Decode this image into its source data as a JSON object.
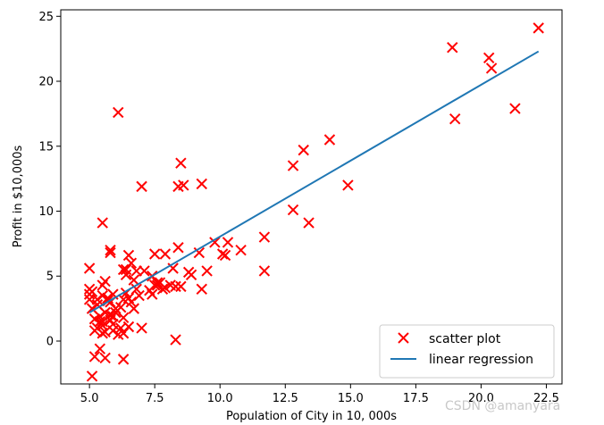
{
  "chart_data": {
    "type": "scatter",
    "xlabel": "Population of City in 10, 000s",
    "ylabel": "Profit in $10,000s",
    "xlim": [
      3.9,
      23.1
    ],
    "ylim": [
      -3.3,
      25.5
    ],
    "xticks": [
      5.0,
      7.5,
      10.0,
      12.5,
      15.0,
      17.5,
      20.0,
      22.5
    ],
    "xtick_labels": [
      "5.0",
      "7.5",
      "10.0",
      "12.5",
      "15.0",
      "17.5",
      "20.0",
      "22.5"
    ],
    "yticks": [
      0,
      5,
      10,
      15,
      20,
      25
    ],
    "ytick_labels": [
      "0",
      "5",
      "10",
      "15",
      "20",
      "25"
    ],
    "grid": false,
    "legend_position": "bottom-right",
    "series": [
      {
        "name": "scatter plot",
        "kind": "scatter",
        "marker": "x",
        "color": "#ff0000",
        "points": [
          [
            6.1,
            17.6
          ],
          [
            5.5,
            9.1
          ],
          [
            8.5,
            13.7
          ],
          [
            7.0,
            11.9
          ],
          [
            5.8,
            6.8
          ],
          [
            8.4,
            11.9
          ],
          [
            7.5,
            4.3
          ],
          [
            8.6,
            12.0
          ],
          [
            6.5,
            6.6
          ],
          [
            5.1,
            3.8
          ],
          [
            5.7,
            3.3
          ],
          [
            14.2,
            15.5
          ],
          [
            5.7,
            3.1
          ],
          [
            8.4,
            7.2
          ],
          [
            6.4,
            5.5
          ],
          [
            5.6,
            0.7
          ],
          [
            6.4,
            3.7
          ],
          [
            5.7,
            3.3
          ],
          [
            6.8,
            4.0
          ],
          [
            5.7,
            3.1
          ],
          [
            5.0,
            5.6
          ],
          [
            12.8,
            13.5
          ],
          [
            10.8,
            7.0
          ],
          [
            5.7,
            3.3
          ],
          [
            5.0,
            3.2
          ],
          [
            11.7,
            8.0
          ],
          [
            5.5,
            1.5
          ],
          [
            7.5,
            6.7
          ],
          [
            5.0,
            4.0
          ],
          [
            9.3,
            4.0
          ],
          [
            6.8,
            5.4
          ],
          [
            10.2,
            6.6
          ],
          [
            5.5,
            4.3
          ],
          [
            6.6,
            6.0
          ],
          [
            6.3,
            1.8
          ],
          [
            6.3,
            3.2
          ],
          [
            6.5,
            3.3
          ],
          [
            5.0,
            3.6
          ],
          [
            5.2,
            -1.2
          ],
          [
            6.3,
            0.6
          ],
          [
            5.9,
            0.8
          ],
          [
            5.4,
            -0.6
          ],
          [
            5.6,
            -1.3
          ],
          [
            6.2,
            1.0
          ],
          [
            5.1,
            2.5
          ],
          [
            5.5,
            0.6
          ],
          [
            5.6,
            4.6
          ],
          [
            5.4,
            1.9
          ],
          [
            5.3,
            1.0
          ],
          [
            6.3,
            -1.4
          ],
          [
            7.0,
            1.0
          ],
          [
            5.1,
            -2.7
          ],
          [
            13.4,
            9.1
          ],
          [
            8.3,
            0.1
          ],
          [
            6.0,
            2.2
          ],
          [
            5.8,
            1.6
          ],
          [
            7.6,
            4.3
          ],
          [
            7.1,
            5.4
          ],
          [
            7.4,
            3.6
          ],
          [
            5.9,
            1.9
          ],
          [
            5.3,
            3.2
          ],
          [
            6.4,
            5.1
          ],
          [
            6.3,
            5.5
          ],
          [
            5.8,
            3.0
          ],
          [
            7.9,
            6.7
          ],
          [
            8.3,
            4.2
          ],
          [
            9.2,
            6.8
          ],
          [
            7.7,
            4.5
          ],
          [
            5.8,
            7.0
          ],
          [
            6.9,
            3.5
          ],
          [
            10.1,
            6.7
          ],
          [
            10.3,
            7.6
          ],
          [
            8.1,
            4.3
          ],
          [
            9.5,
            5.4
          ],
          [
            8.8,
            5.3
          ],
          [
            11.7,
            5.4
          ],
          [
            9.8,
            7.6
          ],
          [
            7.6,
            4.5
          ],
          [
            9.3,
            12.1
          ],
          [
            13.2,
            14.7
          ],
          [
            12.8,
            10.1
          ],
          [
            14.9,
            12.0
          ],
          [
            19.0,
            17.1
          ],
          [
            18.9,
            22.6
          ],
          [
            20.4,
            21.0
          ],
          [
            20.3,
            21.8
          ],
          [
            21.3,
            17.9
          ],
          [
            22.2,
            24.1
          ],
          [
            8.5,
            4.2
          ],
          [
            5.2,
            0.8
          ],
          [
            5.4,
            1.5
          ],
          [
            5.6,
            2.2
          ],
          [
            5.9,
            1.3
          ],
          [
            6.1,
            0.5
          ],
          [
            5.3,
            2.8
          ],
          [
            6.0,
            2.5
          ],
          [
            5.8,
            2.0
          ],
          [
            7.3,
            3.9
          ],
          [
            7.8,
            4.0
          ],
          [
            6.7,
            4.7
          ],
          [
            7.4,
            5.0
          ],
          [
            8.2,
            5.6
          ],
          [
            8.9,
            5.1
          ],
          [
            7.9,
            4.1
          ],
          [
            5.5,
            3.5
          ],
          [
            6.2,
            2.6
          ],
          [
            5.5,
            1.2
          ],
          [
            6.6,
            3.0
          ],
          [
            5.2,
            1.7
          ],
          [
            5.9,
            3.6
          ],
          [
            6.5,
            1.1
          ],
          [
            6.7,
            2.5
          ]
        ]
      },
      {
        "name": "linear regression",
        "kind": "line",
        "color": "#1f77b4",
        "points": [
          [
            5.0,
            2.2
          ],
          [
            22.2,
            22.3
          ]
        ]
      }
    ],
    "watermark": "CSDN @amanyara"
  }
}
